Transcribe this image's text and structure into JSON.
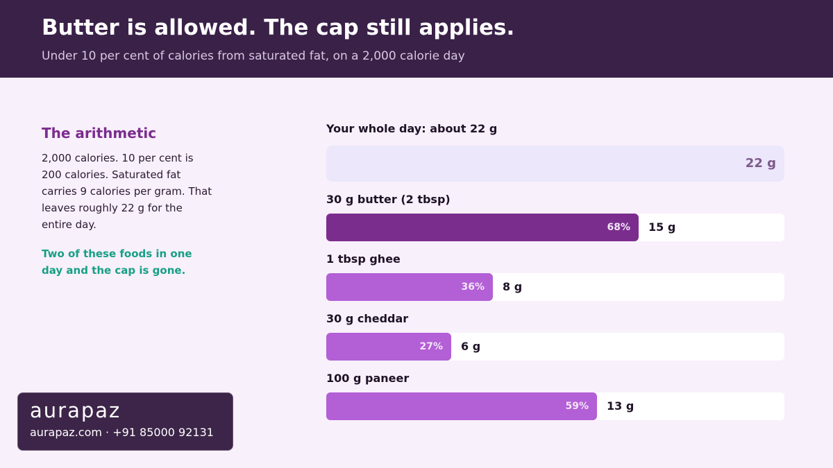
{
  "header": {
    "title": "Butter is allowed. The cap still applies.",
    "subtitle": "Under 10 per cent of calories from saturated fat, on a 2,000 calorie day"
  },
  "sidebar": {
    "heading": "The arithmetic",
    "body": "2,000 calories. 10 per cent is 200 calories. Saturated fat carries 9 calories per gram. That leaves roughly 22 g for the entire day.",
    "note": "Two of these foods in one day and the cap is gone."
  },
  "chart_data": {
    "type": "bar",
    "orientation": "horizontal",
    "cap": {
      "label": "Your whole day: about 22 g",
      "value": 22,
      "value_label": "22 g"
    },
    "categories": [
      "30 g butter (2 tbsp)",
      "1 tbsp ghee",
      "30 g cheddar",
      "100 g paneer"
    ],
    "values": [
      15,
      8,
      6,
      13
    ],
    "value_labels": [
      "15 g",
      "8 g",
      "6 g",
      "13 g"
    ],
    "percent_labels": [
      "68%",
      "36%",
      "27%",
      "59%"
    ],
    "percent_of_cap": [
      68,
      36,
      27,
      59
    ],
    "unit": "g",
    "colors": {
      "highlight": "#7b2d8e",
      "bar": "#b35fd6",
      "cap_track": "#ece7fb",
      "track": "#ffffff"
    },
    "highlight_index": 0
  },
  "brand": {
    "logo": "aurapaz",
    "contact": "aurapaz.com · +91 85000 92131"
  }
}
